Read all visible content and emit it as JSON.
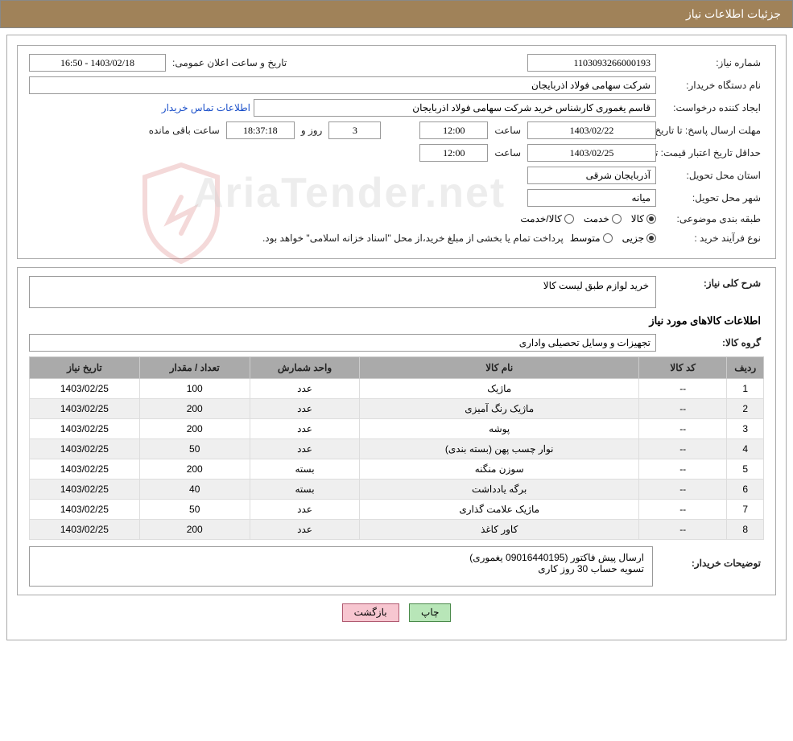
{
  "header": {
    "title": "جزئیات اطلاعات نیاز"
  },
  "form": {
    "need_number_label": "شماره نیاز:",
    "need_number": "1103093266000193",
    "announce_label": "تاریخ و ساعت اعلان عمومی:",
    "announce_value": "1403/02/18 - 16:50",
    "buyer_org_label": "نام دستگاه خریدار:",
    "buyer_org": "شرکت سهامی فولاد اذربایجان",
    "requester_label": "ایجاد کننده درخواست:",
    "requester": "قاسم یغموری کارشناس خرید شرکت سهامی فولاد اذربایجان",
    "contact_link": "اطلاعات تماس خریدار",
    "deadline_label": "مهلت ارسال پاسخ: تا تاریخ:",
    "deadline_date": "1403/02/22",
    "time_label": "ساعت",
    "deadline_time": "12:00",
    "days_remaining": "3",
    "days_remaining_label": "روز و",
    "time_remaining": "18:37:18",
    "time_remaining_label": "ساعت باقی مانده",
    "validity_label": "حداقل تاریخ اعتبار قیمت: تا تاریخ:",
    "validity_date": "1403/02/25",
    "validity_time": "12:00",
    "province_label": "استان محل تحویل:",
    "province": "آذربایجان شرقی",
    "city_label": "شهر محل تحویل:",
    "city": "میانه",
    "category_label": "طبقه بندی موضوعی:",
    "cat_goods": "کالا",
    "cat_service": "خدمت",
    "cat_goods_service": "کالا/خدمت",
    "process_label": "نوع فرآیند خرید :",
    "proc_partial": "جزیی",
    "proc_medium": "متوسط",
    "payment_note": "پرداخت تمام یا بخشی از مبلغ خرید،از محل \"اسناد خزانه اسلامی\" خواهد بود."
  },
  "need": {
    "desc_label": "شرح کلی نیاز:",
    "desc": "خرید لوازم طبق لیست کالا",
    "items_title": "اطلاعات کالاهای مورد نیاز",
    "group_label": "گروه کالا:",
    "group": "تجهیزات و وسایل تحصیلی واداری"
  },
  "table": {
    "columns": [
      "ردیف",
      "کد کالا",
      "نام کالا",
      "واحد شمارش",
      "تعداد / مقدار",
      "تاریخ نیاز"
    ],
    "col_widths": [
      "5%",
      "12%",
      "38%",
      "15%",
      "15%",
      "15%"
    ],
    "rows": [
      [
        "1",
        "--",
        "ماژیک",
        "عدد",
        "100",
        "1403/02/25"
      ],
      [
        "2",
        "--",
        "ماژیک رنگ آمیزی",
        "عدد",
        "200",
        "1403/02/25"
      ],
      [
        "3",
        "--",
        "پوشه",
        "عدد",
        "200",
        "1403/02/25"
      ],
      [
        "4",
        "--",
        "نوار چسب پهن (بسته بندی)",
        "عدد",
        "50",
        "1403/02/25"
      ],
      [
        "5",
        "--",
        "سوزن منگنه",
        "بسته",
        "200",
        "1403/02/25"
      ],
      [
        "6",
        "--",
        "برگه یادداشت",
        "بسته",
        "40",
        "1403/02/25"
      ],
      [
        "7",
        "--",
        "ماژیک علامت گذاری",
        "عدد",
        "50",
        "1403/02/25"
      ],
      [
        "8",
        "--",
        "کاور کاغذ",
        "عدد",
        "200",
        "1403/02/25"
      ]
    ]
  },
  "buyer_notes": {
    "label": "توضیحات خریدار:",
    "line1": "ارسال پیش فاکتور (09016440195 یغموری)",
    "line2": "تسویه حساب 30 روز کاری"
  },
  "buttons": {
    "print": "چاپ",
    "back": "بازگشت"
  },
  "watermark": "AriaTender.net",
  "colors": {
    "header_bg": "#a08259",
    "header_text": "#ffffff",
    "border": "#aaaaaa",
    "table_header_bg": "#aaaaaa",
    "btn_green": "#b8e6b8",
    "btn_pink": "#f7c6d0"
  }
}
